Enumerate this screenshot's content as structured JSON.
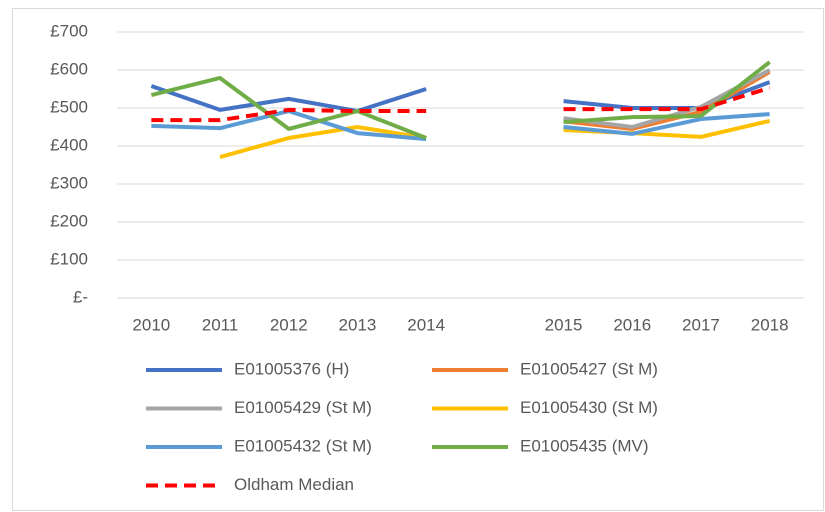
{
  "chart_data": {
    "type": "line",
    "categories": [
      "2010",
      "2011",
      "2012",
      "2013",
      "2014",
      null,
      "2015",
      "2016",
      "2017",
      "2018"
    ],
    "ylim": [
      0,
      700
    ],
    "yticks": [
      {
        "value": 0,
        "label": "£-"
      },
      {
        "value": 100,
        "label": "£100"
      },
      {
        "value": 200,
        "label": "£200"
      },
      {
        "value": 300,
        "label": "£300"
      },
      {
        "value": 400,
        "label": "£400"
      },
      {
        "value": 500,
        "label": "£500"
      },
      {
        "value": 600,
        "label": "£600"
      },
      {
        "value": 700,
        "label": "£700"
      }
    ],
    "grid": true,
    "legend": "bottom",
    "series": [
      {
        "name": "E01005376 (H)",
        "color": "#4472c4",
        "values": [
          558,
          495,
          524,
          492,
          550,
          null,
          518,
          500,
          500,
          568
        ]
      },
      {
        "name": "E01005427 (St M)",
        "color": "#ed7d31",
        "values": [
          null,
          null,
          null,
          null,
          null,
          null,
          465,
          445,
          490,
          595
        ]
      },
      {
        "name": "E01005429 (St M)",
        "color": "#a5a5a5",
        "values": [
          null,
          null,
          null,
          null,
          null,
          null,
          473,
          450,
          503,
          600
        ]
      },
      {
        "name": "E01005430 (St M)",
        "color": "#ffc000",
        "values": [
          null,
          371,
          421,
          450,
          421,
          null,
          442,
          434,
          424,
          466
        ]
      },
      {
        "name": "E01005432 (St M)",
        "color": "#5b9bd5",
        "values": [
          453,
          447,
          492,
          434,
          418,
          null,
          450,
          432,
          471,
          484
        ]
      },
      {
        "name": "E01005435 (MV)",
        "color": "#70ad47",
        "values": [
          534,
          579,
          445,
          492,
          421,
          null,
          463,
          476,
          479,
          621
        ]
      },
      {
        "name": "Oldham Median",
        "color": "#ff0000",
        "dashed": true,
        "values": [
          468,
          468,
          495,
          492,
          492,
          null,
          497,
          497,
          497,
          553
        ]
      }
    ]
  }
}
